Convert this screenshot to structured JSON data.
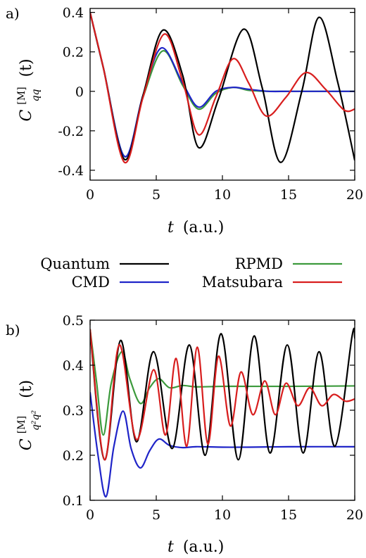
{
  "legend": [
    {
      "name": "Quantum",
      "color": "#000000"
    },
    {
      "name": "CMD",
      "color": "#1f24c8"
    },
    {
      "name": "RPMD",
      "color": "#3c9a3c"
    },
    {
      "name": "Matsubara",
      "color": "#d81e1e"
    }
  ],
  "chart_data": [
    {
      "type": "line",
      "panel_label": "a)",
      "xlabel_var": "t",
      "xlabel_unit": "(a.u.)",
      "ylabel_base": "C",
      "ylabel_super": "[M]",
      "ylabel_sub": "qq",
      "ylabel_arg": "(t)",
      "xlim": [
        0,
        20
      ],
      "ylim": [
        -0.45,
        0.42
      ],
      "xticks": [
        0,
        5,
        10,
        15,
        20
      ],
      "xtick_labels": [
        "0",
        "5",
        "10",
        "15",
        "20"
      ],
      "yticks": [
        0.4,
        0.2,
        0,
        -0.2,
        -0.4
      ],
      "ytick_labels": [
        "0.4",
        "0.2",
        "0",
        "-0.2",
        "-0.4"
      ],
      "grid": false,
      "series": [
        {
          "name": "Quantum",
          "x": [
            0,
            1,
            2.6,
            4,
            5.5,
            7,
            8.2,
            9.7,
            11.6,
            13,
            14.4,
            16,
            17.3,
            18.7,
            20
          ],
          "y": [
            0.4,
            0.12,
            -0.345,
            -0.02,
            0.31,
            0.08,
            -0.285,
            -0.04,
            0.315,
            0.02,
            -0.36,
            0.0,
            0.375,
            0.05,
            -0.35
          ]
        },
        {
          "name": "CMD",
          "x": [
            0,
            1,
            2.6,
            4,
            5.4,
            7,
            8.2,
            9.5,
            10.8,
            12,
            13.5,
            15,
            17,
            20
          ],
          "y": [
            0.4,
            0.12,
            -0.33,
            -0.02,
            0.22,
            0.04,
            -0.08,
            0.0,
            0.02,
            0.01,
            0.0,
            0.0,
            0.0,
            0.0
          ]
        },
        {
          "name": "RPMD",
          "x": [
            0,
            1,
            2.6,
            4,
            5.5,
            7,
            8.2,
            9.5,
            10.8,
            12,
            13.5,
            15,
            17,
            20
          ],
          "y": [
            0.4,
            0.12,
            -0.33,
            -0.03,
            0.205,
            0.03,
            -0.09,
            -0.01,
            0.02,
            0.005,
            0.0,
            0.0,
            0.0,
            0.0
          ]
        },
        {
          "name": "Matsubara",
          "x": [
            0,
            1,
            2.6,
            4,
            5.6,
            7,
            8.2,
            9.5,
            10.8,
            12,
            13.3,
            14.8,
            16.3,
            17.8,
            19.2,
            20
          ],
          "y": [
            0.4,
            0.12,
            -0.36,
            -0.03,
            0.29,
            0.05,
            -0.22,
            -0.03,
            0.165,
            0.04,
            -0.125,
            -0.03,
            0.095,
            0.01,
            -0.095,
            -0.09
          ]
        }
      ]
    },
    {
      "type": "line",
      "panel_label": "b)",
      "xlabel_var": "t",
      "xlabel_unit": "(a.u.)",
      "ylabel_base": "C",
      "ylabel_super": "[M]",
      "ylabel_sub": "q²q²",
      "ylabel_arg": "(t)",
      "xlim": [
        0,
        20
      ],
      "ylim": [
        0.1,
        0.5
      ],
      "xticks": [
        0,
        5,
        10,
        15,
        20
      ],
      "xtick_labels": [
        "0",
        "5",
        "10",
        "15",
        "20"
      ],
      "yticks": [
        0.5,
        0.4,
        0.3,
        0.2,
        0.1
      ],
      "ytick_labels": [
        "0.5",
        "0.4",
        "0.3",
        "0.2",
        "0.1"
      ],
      "grid": false,
      "series": [
        {
          "name": "Quantum",
          "x": [
            0,
            1.1,
            2.3,
            3.5,
            4.8,
            6.2,
            7.5,
            8.7,
            9.9,
            11.2,
            12.4,
            13.6,
            14.9,
            16.1,
            17.3,
            18.5,
            19.8,
            20
          ],
          "y": [
            0.475,
            0.19,
            0.455,
            0.23,
            0.43,
            0.215,
            0.445,
            0.2,
            0.47,
            0.19,
            0.465,
            0.205,
            0.445,
            0.205,
            0.43,
            0.22,
            0.465,
            0.46
          ]
        },
        {
          "name": "CMD",
          "x": [
            0,
            0.6,
            1.2,
            1.8,
            2.5,
            3.1,
            3.8,
            4.5,
            5.2,
            6,
            7,
            8,
            10,
            12,
            15,
            20
          ],
          "y": [
            0.34,
            0.2,
            0.108,
            0.22,
            0.298,
            0.215,
            0.172,
            0.21,
            0.236,
            0.222,
            0.217,
            0.219,
            0.218,
            0.218,
            0.219,
            0.219
          ]
        },
        {
          "name": "RPMD",
          "x": [
            0,
            0.5,
            1.0,
            1.6,
            2.4,
            3.0,
            3.8,
            4.5,
            5.2,
            6.0,
            7,
            8,
            10,
            12,
            15,
            20
          ],
          "y": [
            0.48,
            0.36,
            0.245,
            0.36,
            0.43,
            0.37,
            0.315,
            0.35,
            0.37,
            0.35,
            0.355,
            0.352,
            0.353,
            0.353,
            0.353,
            0.354
          ]
        },
        {
          "name": "Matsubara",
          "x": [
            0,
            1.1,
            2.2,
            3.5,
            4.8,
            5.7,
            6.5,
            7.3,
            8.1,
            8.9,
            9.7,
            10.6,
            11.4,
            12.3,
            13.2,
            14.0,
            14.8,
            15.7,
            16.6,
            17.5,
            18.4,
            19.3,
            20
          ],
          "y": [
            0.48,
            0.19,
            0.445,
            0.235,
            0.39,
            0.245,
            0.415,
            0.22,
            0.44,
            0.225,
            0.42,
            0.265,
            0.385,
            0.29,
            0.365,
            0.29,
            0.36,
            0.31,
            0.35,
            0.31,
            0.335,
            0.32,
            0.325
          ]
        }
      ]
    }
  ]
}
